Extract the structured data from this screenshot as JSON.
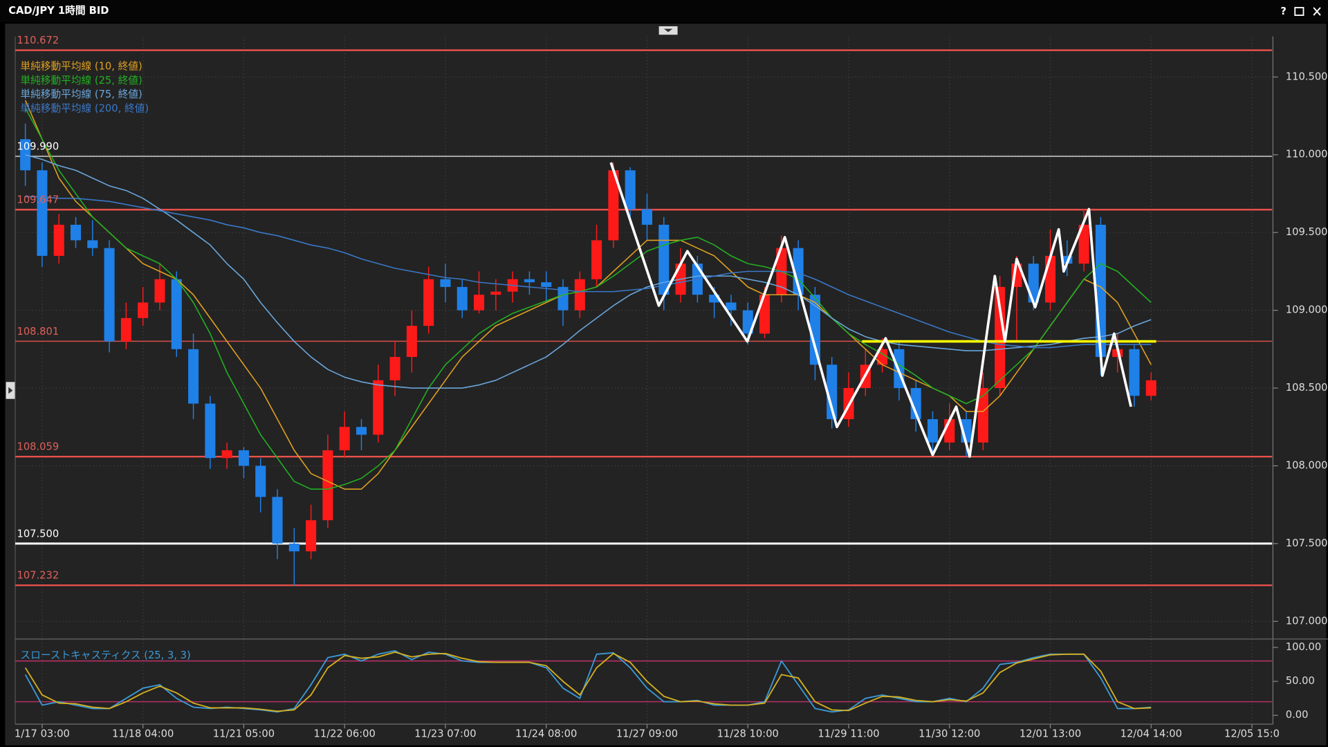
{
  "window": {
    "help": "?"
  },
  "chart_data": [
    {
      "type": "candlestick",
      "title": "CAD/JPY 1時間 BID",
      "up_color": "#ff1a1a",
      "down_color": "#1f80e8",
      "xlim": [
        -0.5,
        74.2
      ],
      "ylim": [
        106.9,
        110.75
      ],
      "grid": true,
      "xticks": [
        {
          "value": 1,
          "label": "1/17 03:00"
        },
        {
          "value": 7,
          "label": "11/18 04:00"
        },
        {
          "value": 13,
          "label": "11/21 05:00"
        },
        {
          "value": 19,
          "label": "11/22 06:00"
        },
        {
          "value": 25,
          "label": "11/23 07:00"
        },
        {
          "value": 31,
          "label": "11/24 08:00"
        },
        {
          "value": 37,
          "label": "11/27 09:00"
        },
        {
          "value": 43,
          "label": "11/28 10:00"
        },
        {
          "value": 49,
          "label": "11/29 11:00"
        },
        {
          "value": 55,
          "label": "11/30 12:00"
        },
        {
          "value": 61,
          "label": "12/01 13:00"
        },
        {
          "value": 67,
          "label": "12/04 14:00"
        },
        {
          "value": 73,
          "label": "12/05 15:0"
        }
      ],
      "yticks": [
        {
          "value": 107,
          "label": "107.000"
        },
        {
          "value": 107.5,
          "label": "107.500"
        },
        {
          "value": 108,
          "label": "108.000"
        },
        {
          "value": 108.5,
          "label": "108.500"
        },
        {
          "value": 109,
          "label": "109.000"
        },
        {
          "value": 109.5,
          "label": "109.500"
        },
        {
          "value": 110,
          "label": "110.000"
        },
        {
          "value": 110.5,
          "label": "110.500"
        }
      ],
      "ohlc": [
        [
          110.1,
          110.2,
          109.8,
          109.9
        ],
        [
          109.9,
          109.95,
          109.28,
          109.35
        ],
        [
          109.35,
          109.62,
          109.3,
          109.55
        ],
        [
          109.55,
          109.6,
          109.4,
          109.45
        ],
        [
          109.45,
          109.58,
          109.35,
          109.4
        ],
        [
          109.4,
          109.45,
          108.73,
          108.8
        ],
        [
          108.8,
          109.05,
          108.75,
          108.95
        ],
        [
          108.95,
          109.15,
          108.9,
          109.05
        ],
        [
          109.05,
          109.3,
          109.0,
          109.2
        ],
        [
          109.2,
          109.25,
          108.7,
          108.75
        ],
        [
          108.75,
          108.85,
          108.3,
          108.4
        ],
        [
          108.4,
          108.45,
          107.98,
          108.05
        ],
        [
          108.05,
          108.15,
          107.98,
          108.1
        ],
        [
          108.1,
          108.12,
          107.92,
          108.0
        ],
        [
          108.0,
          108.05,
          107.7,
          107.8
        ],
        [
          107.8,
          107.85,
          107.4,
          107.5
        ],
        [
          107.5,
          107.6,
          107.23,
          107.45
        ],
        [
          107.45,
          107.75,
          107.4,
          107.65
        ],
        [
          107.65,
          108.2,
          107.6,
          108.1
        ],
        [
          108.1,
          108.35,
          108.05,
          108.25
        ],
        [
          108.25,
          108.3,
          108.1,
          108.2
        ],
        [
          108.2,
          108.65,
          108.15,
          108.55
        ],
        [
          108.55,
          108.8,
          108.45,
          108.7
        ],
        [
          108.7,
          109.0,
          108.6,
          108.9
        ],
        [
          108.9,
          109.28,
          108.85,
          109.2
        ],
        [
          109.2,
          109.3,
          109.05,
          109.15
        ],
        [
          109.15,
          109.2,
          108.95,
          109.0
        ],
        [
          109.0,
          109.25,
          108.98,
          109.1
        ],
        [
          109.1,
          109.2,
          109.0,
          109.12
        ],
        [
          109.12,
          109.25,
          109.05,
          109.2
        ],
        [
          109.2,
          109.25,
          109.1,
          109.18
        ],
        [
          109.18,
          109.25,
          109.05,
          109.15
        ],
        [
          109.15,
          109.2,
          108.9,
          109.0
        ],
        [
          109.0,
          109.25,
          108.95,
          109.2
        ],
        [
          109.2,
          109.55,
          109.15,
          109.45
        ],
        [
          109.45,
          109.95,
          109.4,
          109.9
        ],
        [
          109.9,
          109.92,
          109.55,
          109.65
        ],
        [
          109.65,
          109.75,
          109.45,
          109.55
        ],
        [
          109.55,
          109.6,
          109.0,
          109.1
        ],
        [
          109.1,
          109.4,
          109.05,
          109.3
        ],
        [
          109.3,
          109.35,
          109.05,
          109.1
        ],
        [
          109.1,
          109.15,
          108.95,
          109.05
        ],
        [
          109.05,
          109.1,
          108.9,
          109.0
        ],
        [
          109.0,
          109.05,
          108.78,
          108.85
        ],
        [
          108.85,
          109.15,
          108.82,
          109.1
        ],
        [
          109.1,
          109.48,
          109.05,
          109.4
        ],
        [
          109.4,
          109.45,
          109.0,
          109.1
        ],
        [
          109.1,
          109.15,
          108.55,
          108.65
        ],
        [
          108.65,
          108.7,
          108.24,
          108.3
        ],
        [
          108.3,
          108.6,
          108.25,
          108.5
        ],
        [
          108.5,
          108.75,
          108.45,
          108.65
        ],
        [
          108.65,
          108.82,
          108.6,
          108.75
        ],
        [
          108.75,
          108.8,
          108.42,
          108.5
        ],
        [
          108.5,
          108.55,
          108.22,
          108.3
        ],
        [
          108.3,
          108.35,
          108.07,
          108.15
        ],
        [
          108.15,
          108.4,
          108.1,
          108.3
        ],
        [
          108.3,
          108.35,
          108.06,
          108.15
        ],
        [
          108.15,
          108.6,
          108.1,
          108.5
        ],
        [
          108.5,
          109.22,
          108.45,
          109.15
        ],
        [
          109.15,
          109.35,
          108.8,
          109.3
        ],
        [
          109.3,
          109.35,
          109.0,
          109.05
        ],
        [
          109.05,
          109.52,
          109.0,
          109.35
        ],
        [
          109.35,
          109.45,
          109.22,
          109.3
        ],
        [
          109.3,
          109.65,
          109.25,
          109.55
        ],
        [
          109.55,
          109.6,
          108.58,
          108.7
        ],
        [
          108.7,
          108.85,
          108.6,
          108.75
        ],
        [
          108.75,
          108.78,
          108.38,
          108.45
        ],
        [
          108.45,
          108.6,
          108.42,
          108.55
        ]
      ],
      "series": [
        {
          "name": "単純移動平均線 (10, 終値)",
          "color": "#e0a020",
          "values": [
            110.35,
            110.1,
            109.85,
            109.7,
            109.6,
            109.5,
            109.4,
            109.3,
            109.25,
            109.2,
            109.1,
            108.95,
            108.8,
            108.65,
            108.5,
            108.3,
            108.1,
            107.95,
            107.9,
            107.85,
            107.85,
            107.95,
            108.1,
            108.25,
            108.4,
            108.55,
            108.7,
            108.8,
            108.9,
            108.95,
            109.0,
            109.05,
            109.1,
            109.12,
            109.15,
            109.25,
            109.35,
            109.45,
            109.45,
            109.45,
            109.4,
            109.35,
            109.25,
            109.15,
            109.1,
            109.1,
            109.1,
            109.05,
            108.95,
            108.85,
            108.75,
            108.65,
            108.6,
            108.55,
            108.5,
            108.45,
            108.35,
            108.35,
            108.45,
            108.6,
            108.75,
            108.9,
            109.05,
            109.2,
            109.15,
            109.05,
            108.85,
            108.65
          ]
        },
        {
          "name": "単純移動平均線 (25, 終値)",
          "color": "#22b022",
          "values": [
            110.3,
            110.1,
            109.9,
            109.75,
            109.6,
            109.5,
            109.4,
            109.35,
            109.3,
            109.2,
            109.05,
            108.85,
            108.6,
            108.4,
            108.2,
            108.05,
            107.9,
            107.85,
            107.85,
            107.88,
            107.92,
            108.0,
            108.1,
            108.3,
            108.5,
            108.65,
            108.75,
            108.85,
            108.92,
            108.98,
            109.02,
            109.06,
            109.1,
            109.12,
            109.15,
            109.22,
            109.3,
            109.38,
            109.42,
            109.45,
            109.47,
            109.42,
            109.35,
            109.3,
            109.28,
            109.25,
            109.2,
            109.08,
            108.95,
            108.85,
            108.78,
            108.72,
            108.65,
            108.58,
            108.5,
            108.45,
            108.4,
            108.45,
            108.55,
            108.65,
            108.75,
            108.9,
            109.05,
            109.2,
            109.3,
            109.25,
            109.15,
            109.05
          ]
        },
        {
          "name": "単純移動平均線 (75, 終値)",
          "color": "#6aa6dc",
          "values": [
            110.0,
            109.97,
            109.93,
            109.9,
            109.85,
            109.8,
            109.77,
            109.72,
            109.65,
            109.58,
            109.5,
            109.42,
            109.3,
            109.2,
            109.05,
            108.92,
            108.8,
            108.7,
            108.62,
            108.57,
            108.54,
            108.52,
            108.51,
            108.5,
            108.5,
            108.5,
            108.5,
            108.52,
            108.55,
            108.6,
            108.65,
            108.7,
            108.78,
            108.87,
            108.95,
            109.03,
            109.1,
            109.15,
            109.18,
            109.2,
            109.22,
            109.22,
            109.22,
            109.2,
            109.18,
            109.15,
            109.1,
            109.03,
            108.95,
            108.88,
            108.83,
            108.8,
            108.78,
            108.77,
            108.76,
            108.75,
            108.74,
            108.74,
            108.75,
            108.76,
            108.77,
            108.78,
            108.8,
            108.82,
            108.83,
            108.85,
            108.9,
            108.94
          ]
        },
        {
          "name": "単純移動平均線 (200, 終値)",
          "color": "#3a78c8",
          "values": [
            109.73,
            109.73,
            109.72,
            109.72,
            109.71,
            109.7,
            109.68,
            109.66,
            109.64,
            109.62,
            109.6,
            109.58,
            109.55,
            109.53,
            109.5,
            109.48,
            109.45,
            109.42,
            109.4,
            109.37,
            109.33,
            109.3,
            109.27,
            109.25,
            109.23,
            109.21,
            109.2,
            109.18,
            109.17,
            109.16,
            109.15,
            109.14,
            109.13,
            109.12,
            109.12,
            109.12,
            109.13,
            109.14,
            109.16,
            109.18,
            109.2,
            109.22,
            109.24,
            109.25,
            109.25,
            109.25,
            109.24,
            109.2,
            109.15,
            109.1,
            109.06,
            109.02,
            108.98,
            108.94,
            108.9,
            108.86,
            108.83,
            108.8,
            108.78,
            108.77,
            108.76,
            108.76,
            108.77,
            108.78,
            108.78,
            108.78,
            108.78,
            108.78
          ]
        }
      ],
      "levels": [
        {
          "value": 110.672,
          "label": "110.672",
          "color": "#e8504a",
          "label_color": "#e0605a",
          "width": 2
        },
        {
          "value": 109.99,
          "label": "109.990",
          "color": "#b8b8b8",
          "label_color": "#ffffff",
          "width": 1.5
        },
        {
          "value": 109.647,
          "label": "109.647",
          "color": "#e8504a",
          "label_color": "#e0605a",
          "width": 2
        },
        {
          "value": 108.801,
          "label": "108.801",
          "color": "#d8504a",
          "label_color": "#e0605a",
          "width": 1.2
        },
        {
          "value": 108.059,
          "label": "108.059",
          "color": "#e8504a",
          "label_color": "#e0605a",
          "width": 2
        },
        {
          "value": 107.5,
          "label": "107.500",
          "color": "#ffffff",
          "label_color": "#ffffff",
          "width": 2.5
        },
        {
          "value": 107.232,
          "label": "107.232",
          "color": "#e8504a",
          "label_color": "#e0605a",
          "width": 2
        }
      ],
      "zigzag": {
        "color": "#ffffff",
        "x": [
          34.85,
          37.7,
          39.4,
          42.97,
          45.2,
          48.3,
          51.2,
          54.0,
          55.4,
          56.2,
          57.7,
          58.3,
          59.0,
          60.1,
          61.5,
          61.8,
          63.3,
          64.1,
          64.8,
          65.8
        ],
        "y": [
          109.95,
          109.03,
          109.38,
          108.8,
          109.47,
          108.25,
          108.82,
          108.07,
          108.38,
          108.06,
          109.22,
          108.8,
          109.33,
          109.02,
          109.52,
          109.25,
          109.65,
          108.58,
          108.85,
          108.38
        ]
      },
      "trendline": {
        "color": "#ffff00",
        "x": [
          49.8,
          67.3
        ],
        "y": [
          108.8,
          108.8
        ]
      }
    },
    {
      "type": "line",
      "title": "スローストキャスティクス (25, 3, 3)",
      "xlim": [
        -0.5,
        74.2
      ],
      "ylim": [
        -9.2,
        109.2
      ],
      "yticks": [
        {
          "value": 0,
          "label": "0.00"
        },
        {
          "value": 50,
          "label": "50.00"
        },
        {
          "value": 100,
          "label": "100.00"
        }
      ],
      "levels": [
        20,
        80
      ],
      "level_color": "#c0306a",
      "series": [
        {
          "color": "#3a9ad8",
          "values": [
            60,
            15,
            20,
            15,
            10,
            10,
            25,
            40,
            45,
            25,
            12,
            10,
            12,
            10,
            8,
            5,
            10,
            45,
            85,
            90,
            80,
            90,
            95,
            82,
            93,
            90,
            80,
            78,
            78,
            78,
            78,
            70,
            40,
            25,
            90,
            92,
            70,
            40,
            20,
            20,
            22,
            15,
            15,
            15,
            20,
            80,
            45,
            10,
            5,
            8,
            25,
            30,
            25,
            20,
            20,
            25,
            20,
            40,
            75,
            78,
            85,
            90,
            90,
            90,
            55,
            10,
            10,
            12
          ]
        },
        {
          "color": "#d4b020",
          "values": [
            70,
            30,
            18,
            17,
            12,
            10,
            20,
            33,
            43,
            33,
            18,
            11,
            11,
            11,
            9,
            6,
            8,
            30,
            70,
            88,
            84,
            86,
            93,
            86,
            90,
            91,
            84,
            79,
            78,
            78,
            78,
            73,
            50,
            30,
            70,
            91,
            78,
            50,
            28,
            20,
            21,
            17,
            15,
            15,
            18,
            60,
            55,
            20,
            8,
            7,
            18,
            28,
            27,
            22,
            20,
            23,
            21,
            33,
            63,
            77,
            83,
            89,
            90,
            90,
            65,
            20,
            10,
            11
          ]
        }
      ]
    }
  ]
}
